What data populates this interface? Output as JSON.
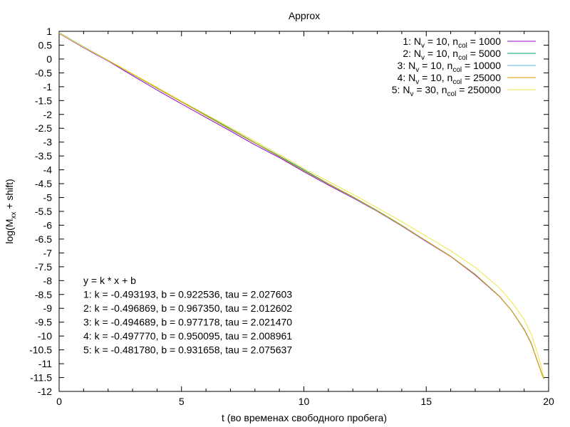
{
  "chart_data": {
    "type": "line",
    "title": "Approx",
    "xlabel": "t (во временах свободного пробега)",
    "ylabel_main": "log(M",
    "ylabel_sub": "xx",
    "ylabel_tail": " + shift)",
    "xlim": [
      0,
      20
    ],
    "ylim": [
      -12,
      1
    ],
    "xticks": [
      0,
      5,
      10,
      15,
      20
    ],
    "yticks": [
      1,
      0.5,
      0,
      -0.5,
      -1,
      -1.5,
      -2,
      -2.5,
      -3,
      -3.5,
      -4,
      -4.5,
      -5,
      -5.5,
      -6,
      -6.5,
      -7,
      -7.5,
      -8,
      -8.5,
      -9,
      -9.5,
      -10,
      -10.5,
      -11,
      -11.5,
      -12
    ],
    "grid": false,
    "legend_position": "top-right",
    "series": [
      {
        "name": "1: N_v = 10, n_col = 1000",
        "legend_idx": "1: N",
        "legend_s1": "v",
        "legend_mid": " = 10, n",
        "legend_s2": "col",
        "legend_end": " = 1000",
        "color": "#9400d3",
        "x": [
          0,
          1,
          2,
          3,
          4,
          5,
          6,
          7,
          8,
          9,
          10,
          11,
          12,
          13,
          14,
          15,
          16,
          17,
          18,
          18.5,
          19,
          19.3,
          19.5,
          19.7,
          19.8
        ],
        "y": [
          0.92,
          0.41,
          -0.07,
          -0.6,
          -1.12,
          -1.62,
          -2.11,
          -2.6,
          -3.1,
          -3.56,
          -4.07,
          -4.55,
          -5.01,
          -5.5,
          -6.03,
          -6.59,
          -7.13,
          -7.8,
          -8.58,
          -9.1,
          -9.77,
          -10.3,
          -10.8,
          -11.3,
          -11.55
        ]
      },
      {
        "name": "2: N_v = 10, n_col = 5000",
        "legend_idx": "2: N",
        "legend_s1": "v",
        "legend_mid": " = 10, n",
        "legend_s2": "col",
        "legend_end": " = 5000",
        "color": "#009e73",
        "x": [
          0,
          1,
          2,
          3,
          4,
          5,
          6,
          7,
          8,
          9,
          10,
          11,
          12,
          13,
          14,
          15,
          16,
          17,
          18,
          18.5,
          19,
          19.3,
          19.5,
          19.7,
          19.8
        ],
        "y": [
          0.95,
          0.44,
          -0.04,
          -0.54,
          -1.03,
          -1.53,
          -2.02,
          -2.52,
          -3.02,
          -3.5,
          -4.0,
          -4.5,
          -4.97,
          -5.47,
          -6.0,
          -6.57,
          -7.12,
          -7.77,
          -8.57,
          -9.1,
          -9.75,
          -10.28,
          -10.8,
          -11.3,
          -11.55
        ]
      },
      {
        "name": "3: N_v = 10, n_col = 10000",
        "legend_idx": "3: N",
        "legend_s1": "v",
        "legend_mid": " = 10, n",
        "legend_s2": "col",
        "legend_end": " = 10000",
        "color": "#56b4e9",
        "x": [
          0,
          1,
          2,
          3,
          4,
          5,
          6,
          7,
          8,
          9,
          10,
          11,
          12,
          13,
          14,
          15,
          16,
          17,
          18,
          18.5,
          19,
          19.3,
          19.5,
          19.7,
          19.8
        ],
        "y": [
          0.95,
          0.43,
          -0.05,
          -0.56,
          -1.06,
          -1.55,
          -2.05,
          -2.55,
          -3.04,
          -3.53,
          -4.04,
          -4.52,
          -4.99,
          -5.49,
          -6.02,
          -6.58,
          -7.12,
          -7.78,
          -8.57,
          -9.1,
          -9.76,
          -10.29,
          -10.8,
          -11.3,
          -11.55
        ]
      },
      {
        "name": "4: N_v = 10, n_col = 25000",
        "legend_idx": "4: N",
        "legend_s1": "v",
        "legend_mid": " = 10, n",
        "legend_s2": "col",
        "legend_end": " = 25000",
        "color": "#e69f00",
        "x": [
          0,
          1,
          2,
          3,
          4,
          5,
          6,
          7,
          8,
          9,
          10,
          11,
          12,
          13,
          14,
          15,
          16,
          17,
          18,
          18.5,
          19,
          19.3,
          19.5,
          19.7,
          19.8
        ],
        "y": [
          0.94,
          0.43,
          -0.05,
          -0.55,
          -1.05,
          -1.55,
          -2.05,
          -2.54,
          -3.03,
          -3.52,
          -4.03,
          -4.51,
          -4.98,
          -5.48,
          -6.01,
          -6.57,
          -7.12,
          -7.78,
          -8.57,
          -9.1,
          -9.76,
          -10.29,
          -10.8,
          -11.3,
          -11.55
        ]
      },
      {
        "name": "5: N_v = 30, n_col = 250000",
        "legend_idx": "5: N",
        "legend_s1": "v",
        "legend_mid": " = 30, n",
        "legend_s2": "col",
        "legend_end": " = 250000",
        "color": "#f0e442",
        "x": [
          0,
          1,
          2,
          3,
          4,
          5,
          6,
          7,
          8,
          9,
          10,
          11,
          12,
          13,
          14,
          15,
          16,
          17,
          18,
          18.5,
          19,
          19.3,
          19.5,
          19.7,
          19.8
        ],
        "y": [
          0.93,
          0.43,
          -0.04,
          -0.53,
          -1.02,
          -1.52,
          -2.0,
          -2.48,
          -2.97,
          -3.45,
          -3.95,
          -4.42,
          -4.88,
          -5.37,
          -5.87,
          -6.4,
          -6.92,
          -7.52,
          -8.27,
          -8.78,
          -9.4,
          -9.95,
          -10.5,
          -11.1,
          -11.5
        ]
      }
    ],
    "fit_text": [
      "y = k * x + b",
      "1: k = -0.493193, b = 0.922536, tau = 2.027603",
      "2: k = -0.496869, b = 0.967350, tau = 2.012602",
      "3: k = -0.494689, b = 0.977178, tau = 2.021470",
      "4: k = -0.497770, b = 0.950095, tau = 2.008961",
      "5: k = -0.481780, b = 0.931658, tau = 2.075637"
    ]
  }
}
